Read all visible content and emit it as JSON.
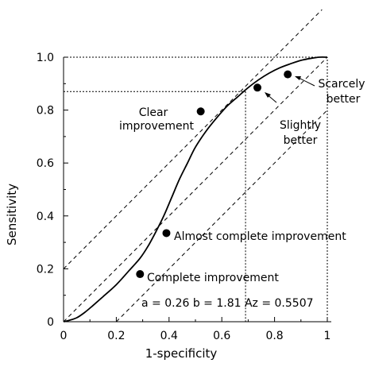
{
  "chart_data": {
    "type": "line",
    "title": "",
    "xlabel": "1-specificity",
    "ylabel": "Sensitivity",
    "xlim": [
      0,
      1
    ],
    "ylim": [
      0,
      1
    ],
    "x_ticks": [
      0,
      0.2,
      0.4,
      0.6,
      0.8,
      1
    ],
    "x_tick_labels": [
      "0",
      "0.2",
      "0.4",
      "0.6",
      "0.8",
      "1"
    ],
    "y_ticks": [
      0,
      0.2,
      0.4,
      0.6,
      0.8,
      1.0
    ],
    "y_tick_labels": [
      "0",
      "0.2",
      "0.4",
      "0.6",
      "0.8",
      "1.0"
    ],
    "params_text": "a = 0.26   b = 1.81   Az = 0.5507",
    "roc_curve": {
      "a": 0.26,
      "b": 1.81,
      "points": [
        [
          0.0,
          0.0
        ],
        [
          0.02,
          0.005
        ],
        [
          0.05,
          0.015
        ],
        [
          0.08,
          0.035
        ],
        [
          0.11,
          0.06
        ],
        [
          0.15,
          0.095
        ],
        [
          0.2,
          0.14
        ],
        [
          0.25,
          0.195
        ],
        [
          0.29,
          0.24
        ],
        [
          0.32,
          0.285
        ],
        [
          0.35,
          0.34
        ],
        [
          0.38,
          0.4
        ],
        [
          0.41,
          0.47
        ],
        [
          0.44,
          0.54
        ],
        [
          0.47,
          0.6
        ],
        [
          0.5,
          0.66
        ],
        [
          0.54,
          0.72
        ],
        [
          0.58,
          0.77
        ],
        [
          0.62,
          0.815
        ],
        [
          0.66,
          0.85
        ],
        [
          0.7,
          0.885
        ],
        [
          0.74,
          0.915
        ],
        [
          0.78,
          0.94
        ],
        [
          0.82,
          0.96
        ],
        [
          0.86,
          0.975
        ],
        [
          0.9,
          0.988
        ],
        [
          0.94,
          0.996
        ],
        [
          0.97,
          1.0
        ],
        [
          1.0,
          1.0
        ]
      ]
    },
    "reference_lines": [
      {
        "points": [
          [
            0.0,
            0.0
          ],
          [
            1.0,
            1.0
          ]
        ]
      },
      {
        "points": [
          [
            0.0,
            0.2
          ],
          [
            0.98,
            1.18
          ]
        ]
      },
      {
        "points": [
          [
            0.2,
            0.0
          ],
          [
            1.0,
            0.8
          ]
        ]
      }
    ],
    "frame_lines": [
      {
        "points": [
          [
            0.0,
            1.0
          ],
          [
            1.0,
            1.0
          ]
        ]
      },
      {
        "points": [
          [
            1.0,
            0.0
          ],
          [
            1.0,
            1.0
          ]
        ]
      }
    ],
    "crosshair": {
      "x": 0.69,
      "y": 0.87
    },
    "points": [
      {
        "x": 0.29,
        "y": 0.18,
        "label": "Complete improvement"
      },
      {
        "x": 0.39,
        "y": 0.335,
        "label": "Almost complete improvement"
      },
      {
        "x": 0.52,
        "y": 0.795,
        "label": "Clear improvement"
      },
      {
        "x": 0.735,
        "y": 0.885,
        "label": "Slightly better"
      },
      {
        "x": 0.85,
        "y": 0.935,
        "label": "Scarcely better"
      }
    ],
    "grid": false,
    "legend": "none"
  }
}
